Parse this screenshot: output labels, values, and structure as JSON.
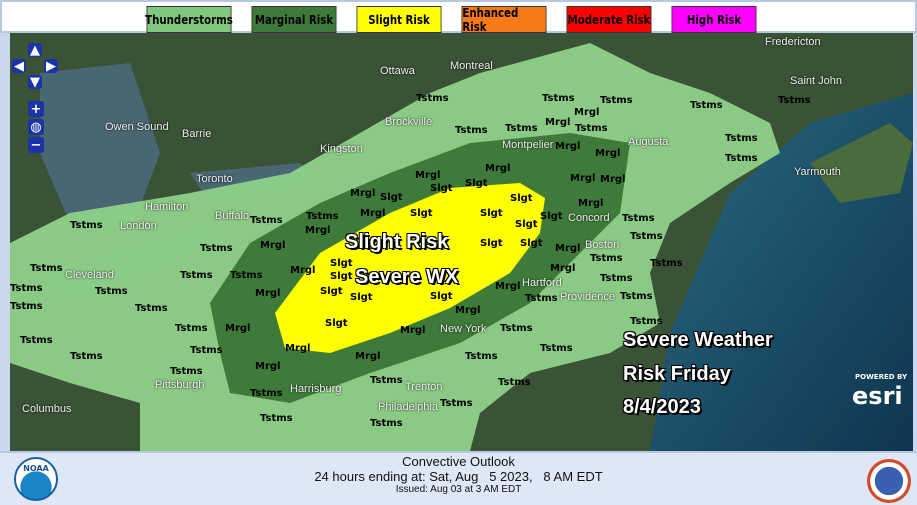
{
  "legend": {
    "items": [
      {
        "label": "Thunderstorms",
        "color": "#80c87d"
      },
      {
        "label": "Marginal Risk",
        "color": "#3e7b3a"
      },
      {
        "label": "Slight Risk",
        "color": "#ffff00"
      },
      {
        "label": "Enhanced Risk",
        "color": "#f87a16"
      },
      {
        "label": "Moderate Risk",
        "color": "#ff0000"
      },
      {
        "label": "High Risk",
        "color": "#ff00ff"
      }
    ]
  },
  "map": {
    "labels": {
      "tstms": "Tstms",
      "mrgl": "Mrgl",
      "slgt": "Slgt"
    },
    "overlay": {
      "line1": "Slight Risk",
      "line2": "Severe WX"
    },
    "caption": {
      "line1": "Severe Weather",
      "line2": "Risk Friday",
      "line3": "8/4/2023"
    },
    "cities": [
      "Ottawa",
      "Montreal",
      "Owen Sound",
      "Barrie",
      "Brockville",
      "Kingston",
      "Montpelier",
      "Augusta",
      "Saint John",
      "Fredericton",
      "Yarmouth",
      "Toronto",
      "Hamilton",
      "London",
      "Buffalo",
      "Concord",
      "Boston",
      "Hartford",
      "Providence",
      "New York",
      "Trenton",
      "Philadelphia",
      "Harrisburg",
      "Pittsburgh",
      "Cleveland",
      "Columbus"
    ],
    "attribution": {
      "powered": "POWERED BY",
      "brand": "esri"
    },
    "controls": {
      "up": "▲",
      "down": "▼",
      "left": "◀",
      "right": "▶",
      "zoom_in": "+",
      "zoom_out": "−",
      "globe": "◍"
    }
  },
  "footer": {
    "title": "Convective Outlook",
    "valid": "24 hours ending at: Sat, Aug   5 2023,   8 AM EDT",
    "issued": "Issued: Aug 03 at 3 AM EDT",
    "noaa": "NOAA"
  }
}
